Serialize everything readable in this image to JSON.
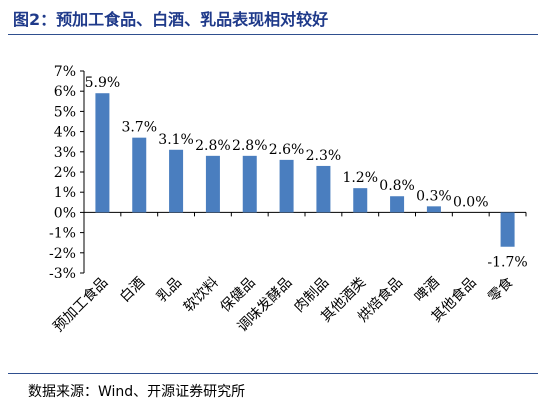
{
  "header": {
    "title": "图2：预加工食品、白酒、乳品表现相对较好"
  },
  "footer": {
    "source": "数据来源：Wind、开源证券研究所"
  },
  "colors": {
    "bar": "#4a7ebf",
    "title": "#1f3a8a",
    "rule": "#2f4f8f"
  },
  "chart_data": {
    "type": "bar",
    "categories": [
      "预加工食品",
      "白酒",
      "乳品",
      "软饮料",
      "保健品",
      "调味发酵品",
      "肉制品",
      "其他酒类",
      "烘焙食品",
      "啤酒",
      "其他食品",
      "零食"
    ],
    "values": [
      5.9,
      3.7,
      3.1,
      2.8,
      2.8,
      2.6,
      2.3,
      1.2,
      0.8,
      0.3,
      0.0,
      -1.7
    ],
    "data_labels": [
      "5.9%",
      "3.7%",
      "3.1%",
      "2.8%",
      "2.8%",
      "2.6%",
      "2.3%",
      "1.2%",
      "0.8%",
      "0.3%",
      "0.0%",
      "-1.7%"
    ],
    "ylim": [
      -3,
      7
    ],
    "yticks": [
      7,
      6,
      5,
      4,
      3,
      2,
      1,
      0,
      -1,
      -2,
      -3
    ],
    "ytick_labels": [
      "7%",
      "6%",
      "5%",
      "4%",
      "3%",
      "2%",
      "1%",
      "0%",
      "-1%",
      "-2%",
      "-3%"
    ],
    "grid": false,
    "legend": "none"
  }
}
